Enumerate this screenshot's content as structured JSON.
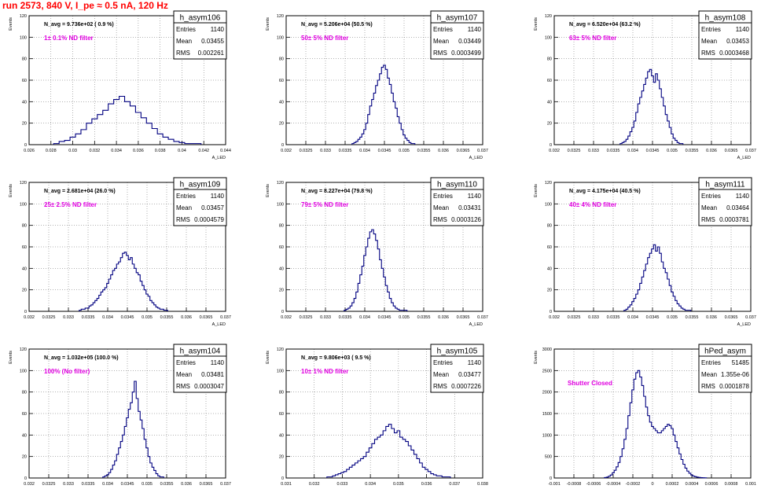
{
  "page_title": "run 2573,   840 V, I_pe ≈ 0.5 nA, 120 Hz",
  "chart_data": [
    {
      "type": "histogram",
      "name": "h_asym106",
      "nav_label": "N_avg = 9.736e+02 ( 0.9 %)",
      "filter_label": "1± 0.1% ND filter",
      "stats": {
        "Entries": "1140",
        "Mean": "0.03455",
        "RMS": "0.002261"
      },
      "ylabel": "Events",
      "xlabel": "A_LED",
      "xlim": [
        0.026,
        0.044
      ],
      "ylim": [
        0,
        120
      ],
      "xticks": [
        0.026,
        0.028,
        0.03,
        0.032,
        0.034,
        0.036,
        0.038,
        0.04,
        0.042,
        0.044
      ],
      "xtick_labels": [
        "0.026",
        "0.028",
        "0.03",
        "0.032",
        "0.034",
        "0.036",
        "0.038",
        "0.04",
        "0.042",
        "0.044"
      ],
      "yticks": [
        0,
        20,
        40,
        60,
        80,
        100,
        120
      ],
      "ytick_labels": [
        "0",
        "20",
        "40",
        "60",
        "80",
        "100",
        "120"
      ],
      "x": [
        0.0285,
        0.029,
        0.0295,
        0.03,
        0.0305,
        0.031,
        0.0315,
        0.032,
        0.0325,
        0.033,
        0.0335,
        0.034,
        0.0345,
        0.035,
        0.0355,
        0.036,
        0.0365,
        0.037,
        0.0375,
        0.038,
        0.0385,
        0.039,
        0.0395,
        0.04,
        0.0405,
        0.041,
        0.0415
      ],
      "values": [
        1,
        3,
        4,
        7,
        10,
        14,
        20,
        24,
        28,
        32,
        38,
        42,
        45,
        40,
        36,
        30,
        25,
        20,
        15,
        10,
        7,
        5,
        3,
        2,
        1,
        1,
        1
      ]
    },
    {
      "type": "histogram",
      "name": "h_asym107",
      "nav_label": "N_avg = 5.206e+04 (50.5 %)",
      "filter_label": "50± 5% ND filter",
      "stats": {
        "Entries": "1140",
        "Mean": "0.03449",
        "RMS": "0.0003499"
      },
      "ylabel": "Events",
      "xlabel": "A_LED",
      "xlim": [
        0.032,
        0.037
      ],
      "ylim": [
        0,
        120
      ],
      "xticks": [
        0.032,
        0.0325,
        0.033,
        0.0335,
        0.034,
        0.0345,
        0.035,
        0.0355,
        0.036,
        0.0365,
        0.037
      ],
      "xtick_labels": [
        "0.032",
        "0.0325",
        "0.033",
        "0.0335",
        "0.034",
        "0.0345",
        "0.035",
        "0.0355",
        "0.036",
        "0.0365",
        "0.037"
      ],
      "yticks": [
        0,
        20,
        40,
        60,
        80,
        100,
        120
      ],
      "ytick_labels": [
        "0",
        "20",
        "40",
        "60",
        "80",
        "100",
        "120"
      ],
      "x": [
        0.0337,
        0.03375,
        0.0338,
        0.03385,
        0.0339,
        0.03395,
        0.034,
        0.03405,
        0.0341,
        0.03415,
        0.0342,
        0.03425,
        0.0343,
        0.03435,
        0.0344,
        0.03445,
        0.0345,
        0.03455,
        0.0346,
        0.03465,
        0.0347,
        0.03475,
        0.0348,
        0.03485,
        0.0349,
        0.03495,
        0.035,
        0.03505,
        0.0351,
        0.03515,
        0.0352,
        0.03525
      ],
      "values": [
        1,
        2,
        3,
        5,
        7,
        10,
        14,
        20,
        28,
        36,
        42,
        48,
        55,
        60,
        66,
        72,
        74,
        70,
        62,
        56,
        48,
        40,
        34,
        26,
        20,
        14,
        9,
        6,
        4,
        2,
        1,
        1
      ]
    },
    {
      "type": "histogram",
      "name": "h_asym108",
      "nav_label": "N_avg = 6.520e+04 (63.2 %)",
      "filter_label": "63± 5% ND filter",
      "stats": {
        "Entries": "1140",
        "Mean": "0.03453",
        "RMS": "0.0003468"
      },
      "ylabel": "Events",
      "xlabel": "A_LED",
      "xlim": [
        0.032,
        0.037
      ],
      "ylim": [
        0,
        120
      ],
      "xticks": [
        0.032,
        0.0325,
        0.033,
        0.0335,
        0.034,
        0.0345,
        0.035,
        0.0355,
        0.036,
        0.0365,
        0.037
      ],
      "xtick_labels": [
        "0.032",
        "0.0325",
        "0.033",
        "0.0335",
        "0.034",
        "0.0345",
        "0.035",
        "0.0355",
        "0.036",
        "0.0365",
        "0.037"
      ],
      "yticks": [
        0,
        20,
        40,
        60,
        80,
        100,
        120
      ],
      "ytick_labels": [
        "0",
        "20",
        "40",
        "60",
        "80",
        "100",
        "120"
      ],
      "x": [
        0.0337,
        0.03375,
        0.0338,
        0.03385,
        0.0339,
        0.03395,
        0.034,
        0.03405,
        0.0341,
        0.03415,
        0.0342,
        0.03425,
        0.0343,
        0.03435,
        0.0344,
        0.03445,
        0.0345,
        0.03455,
        0.0346,
        0.03465,
        0.0347,
        0.03475,
        0.0348,
        0.03485,
        0.0349,
        0.03495,
        0.035,
        0.03505,
        0.0351,
        0.03515,
        0.0352,
        0.03525
      ],
      "values": [
        1,
        2,
        3,
        5,
        8,
        12,
        16,
        22,
        30,
        38,
        44,
        50,
        56,
        62,
        68,
        70,
        64,
        58,
        66,
        60,
        52,
        44,
        36,
        28,
        22,
        16,
        10,
        6,
        4,
        2,
        1,
        1
      ]
    },
    {
      "type": "histogram",
      "name": "h_asym109",
      "nav_label": "N_avg = 2.681e+04 (26.0 %)",
      "filter_label": "25± 2.5% ND filter",
      "stats": {
        "Entries": "1140",
        "Mean": "0.03457",
        "RMS": "0.0004579"
      },
      "ylabel": "Events",
      "xlabel": "A_LED",
      "xlim": [
        0.032,
        0.037
      ],
      "ylim": [
        0,
        120
      ],
      "xticks": [
        0.032,
        0.0325,
        0.033,
        0.0335,
        0.034,
        0.0345,
        0.035,
        0.0355,
        0.036,
        0.0365,
        0.037
      ],
      "xtick_labels": [
        "0.032",
        "0.0325",
        "0.033",
        "0.0335",
        "0.034",
        "0.0345",
        "0.035",
        "0.0355",
        "0.036",
        "0.0365",
        "0.037"
      ],
      "yticks": [
        0,
        20,
        40,
        60,
        80,
        100,
        120
      ],
      "ytick_labels": [
        "0",
        "20",
        "40",
        "60",
        "80",
        "100",
        "120"
      ],
      "x": [
        0.0333,
        0.03335,
        0.0334,
        0.03345,
        0.0335,
        0.03355,
        0.0336,
        0.03365,
        0.0337,
        0.03375,
        0.0338,
        0.03385,
        0.0339,
        0.03395,
        0.034,
        0.03405,
        0.0341,
        0.03415,
        0.0342,
        0.03425,
        0.0343,
        0.03435,
        0.0344,
        0.03445,
        0.0345,
        0.03455,
        0.0346,
        0.03465,
        0.0347,
        0.03475,
        0.0348,
        0.03485,
        0.0349,
        0.03495,
        0.035,
        0.03505,
        0.0351,
        0.03515,
        0.0352,
        0.03525,
        0.0353,
        0.03535,
        0.0354,
        0.03545,
        0.0355
      ],
      "values": [
        1,
        2,
        2,
        3,
        3,
        5,
        6,
        8,
        10,
        12,
        15,
        18,
        20,
        22,
        26,
        30,
        34,
        38,
        40,
        44,
        46,
        50,
        54,
        55,
        52,
        48,
        50,
        44,
        40,
        36,
        34,
        28,
        24,
        20,
        16,
        14,
        10,
        8,
        6,
        4,
        3,
        2,
        2,
        1,
        1
      ]
    },
    {
      "type": "histogram",
      "name": "h_asym110",
      "nav_label": "N_avg = 8.227e+04 (79.8 %)",
      "filter_label": "79± 5% ND filter",
      "stats": {
        "Entries": "1140",
        "Mean": "0.03431",
        "RMS": "0.0003126"
      },
      "ylabel": "Events",
      "xlabel": "A_LED",
      "xlim": [
        0.032,
        0.037
      ],
      "ylim": [
        0,
        120
      ],
      "xticks": [
        0.032,
        0.0325,
        0.033,
        0.0335,
        0.034,
        0.0345,
        0.035,
        0.0355,
        0.036,
        0.0365,
        0.037
      ],
      "xtick_labels": [
        "0.032",
        "0.0325",
        "0.033",
        "0.0335",
        "0.034",
        "0.0345",
        "0.035",
        "0.0355",
        "0.036",
        "0.0365",
        "0.037"
      ],
      "yticks": [
        0,
        20,
        40,
        60,
        80,
        100,
        120
      ],
      "ytick_labels": [
        "0",
        "20",
        "40",
        "60",
        "80",
        "100",
        "120"
      ],
      "x": [
        0.0335,
        0.03355,
        0.0336,
        0.03365,
        0.0337,
        0.03375,
        0.0338,
        0.03385,
        0.0339,
        0.03395,
        0.034,
        0.03405,
        0.0341,
        0.03415,
        0.0342,
        0.03425,
        0.0343,
        0.03435,
        0.0344,
        0.03445,
        0.0345,
        0.03455,
        0.0346,
        0.03465,
        0.0347,
        0.03475,
        0.0348,
        0.03485,
        0.0349,
        0.03495,
        0.035,
        0.03505
      ],
      "values": [
        1,
        2,
        3,
        5,
        8,
        12,
        18,
        26,
        34,
        42,
        52,
        60,
        68,
        74,
        76,
        72,
        66,
        58,
        48,
        40,
        32,
        24,
        18,
        12,
        8,
        5,
        3,
        2,
        1,
        1,
        1,
        1
      ]
    },
    {
      "type": "histogram",
      "name": "h_asym111",
      "nav_label": "N_avg = 4.175e+04 (40.5 %)",
      "filter_label": "40± 4% ND filter",
      "stats": {
        "Entries": "1140",
        "Mean": "0.03464",
        "RMS": "0.0003781"
      },
      "ylabel": "Events",
      "xlabel": "A_LED",
      "xlim": [
        0.032,
        0.037
      ],
      "ylim": [
        0,
        120
      ],
      "xticks": [
        0.032,
        0.0325,
        0.033,
        0.0335,
        0.034,
        0.0345,
        0.035,
        0.0355,
        0.036,
        0.0365,
        0.037
      ],
      "xtick_labels": [
        "0.032",
        "0.0325",
        "0.033",
        "0.0335",
        "0.034",
        "0.0345",
        "0.035",
        "0.0355",
        "0.036",
        "0.0365",
        "0.037"
      ],
      "yticks": [
        0,
        20,
        40,
        60,
        80,
        100,
        120
      ],
      "ytick_labels": [
        "0",
        "20",
        "40",
        "60",
        "80",
        "100",
        "120"
      ],
      "x": [
        0.0338,
        0.03385,
        0.0339,
        0.03395,
        0.034,
        0.03405,
        0.0341,
        0.03415,
        0.0342,
        0.03425,
        0.0343,
        0.03435,
        0.0344,
        0.03445,
        0.0345,
        0.03455,
        0.0346,
        0.03465,
        0.0347,
        0.03475,
        0.0348,
        0.03485,
        0.0349,
        0.03495,
        0.035,
        0.03505,
        0.0351,
        0.03515,
        0.0352,
        0.03525,
        0.0353,
        0.03535,
        0.0354,
        0.03545
      ],
      "values": [
        1,
        2,
        4,
        6,
        9,
        12,
        16,
        20,
        26,
        32,
        38,
        44,
        50,
        54,
        58,
        62,
        56,
        60,
        54,
        46,
        40,
        36,
        30,
        24,
        18,
        14,
        10,
        7,
        5,
        3,
        2,
        1,
        1,
        1
      ]
    },
    {
      "type": "histogram",
      "name": "h_asym104",
      "nav_label": "N_avg = 1.032e+05 (100.0 %)",
      "filter_label": "100% (No filter)",
      "stats": {
        "Entries": "1140",
        "Mean": "0.03481",
        "RMS": "0.0003047"
      },
      "ylabel": "Events",
      "xlabel": "A_LED",
      "xlim": [
        0.032,
        0.037
      ],
      "ylim": [
        0,
        120
      ],
      "xticks": [
        0.032,
        0.0325,
        0.033,
        0.0335,
        0.034,
        0.0345,
        0.035,
        0.0355,
        0.036,
        0.0365,
        0.037
      ],
      "xtick_labels": [
        "0.032",
        "0.0325",
        "0.033",
        "0.0335",
        "0.034",
        "0.0345",
        "0.035",
        "0.0355",
        "0.036",
        "0.0365",
        "0.037"
      ],
      "yticks": [
        0,
        20,
        40,
        60,
        80,
        100,
        120
      ],
      "ytick_labels": [
        "0",
        "20",
        "40",
        "60",
        "80",
        "100",
        "120"
      ],
      "x": [
        0.0339,
        0.03395,
        0.034,
        0.03405,
        0.0341,
        0.03415,
        0.0342,
        0.03425,
        0.0343,
        0.03435,
        0.0344,
        0.03445,
        0.0345,
        0.03455,
        0.0346,
        0.03465,
        0.0347,
        0.03475,
        0.0348,
        0.03485,
        0.0349,
        0.03495,
        0.035,
        0.03505,
        0.0351,
        0.03515,
        0.0352,
        0.03525,
        0.0353,
        0.03535,
        0.0354
      ],
      "values": [
        1,
        2,
        3,
        5,
        8,
        12,
        16,
        22,
        28,
        34,
        40,
        48,
        56,
        64,
        70,
        80,
        90,
        74,
        62,
        54,
        46,
        36,
        28,
        20,
        14,
        10,
        7,
        4,
        2,
        1,
        1
      ]
    },
    {
      "type": "histogram",
      "name": "h_asym105",
      "nav_label": "N_avg = 9.806e+03 ( 9.5 %)",
      "filter_label": "10± 1% ND filter",
      "stats": {
        "Entries": "1140",
        "Mean": "0.03477",
        "RMS": "0.0007226"
      },
      "ylabel": "Events",
      "xlabel": "A_LED",
      "xlim": [
        0.031,
        0.038
      ],
      "ylim": [
        0,
        120
      ],
      "xticks": [
        0.031,
        0.032,
        0.033,
        0.034,
        0.035,
        0.036,
        0.037,
        0.038
      ],
      "xtick_labels": [
        "0.031",
        "0.032",
        "0.033",
        "0.034",
        "0.035",
        "0.036",
        "0.037",
        "0.038"
      ],
      "yticks": [
        0,
        20,
        40,
        60,
        80,
        100,
        120
      ],
      "ytick_labels": [
        "0",
        "20",
        "40",
        "60",
        "80",
        "100",
        "120"
      ],
      "x": [
        0.0325,
        0.0326,
        0.0327,
        0.0328,
        0.0329,
        0.033,
        0.0331,
        0.0332,
        0.0333,
        0.0334,
        0.0335,
        0.0336,
        0.0337,
        0.0338,
        0.0339,
        0.034,
        0.0341,
        0.0342,
        0.0343,
        0.0344,
        0.0345,
        0.0346,
        0.0347,
        0.0348,
        0.0349,
        0.035,
        0.0351,
        0.0352,
        0.0353,
        0.0354,
        0.0355,
        0.0356,
        0.0357,
        0.0358,
        0.0359,
        0.036,
        0.0361,
        0.0362,
        0.0363,
        0.0364,
        0.0365,
        0.0366,
        0.0367,
        0.0368
      ],
      "values": [
        1,
        1,
        2,
        3,
        4,
        5,
        6,
        8,
        10,
        12,
        14,
        16,
        18,
        20,
        24,
        28,
        32,
        36,
        38,
        40,
        44,
        48,
        50,
        46,
        42,
        44,
        38,
        36,
        34,
        30,
        26,
        22,
        18,
        14,
        10,
        8,
        6,
        4,
        3,
        2,
        2,
        1,
        1,
        1
      ]
    },
    {
      "type": "histogram",
      "name": "hPed_asym",
      "nav_label": "",
      "filter_label": "Shutter Closed",
      "stats": {
        "Entries": "51485",
        "Mean": "1.355e-06",
        "RMS": "0.0001878"
      },
      "ylabel": "Events",
      "xlabel": "",
      "xlim": [
        -0.001,
        0.001
      ],
      "ylim": [
        0,
        3000
      ],
      "xticks": [
        -0.001,
        -0.0008,
        -0.0006,
        -0.0004,
        -0.0002,
        0,
        0.0002,
        0.0004,
        0.0006,
        0.0008,
        0.001
      ],
      "xtick_labels": [
        "-0.001",
        "-0.0008",
        "-0.0006",
        "-0.0004",
        "-0.0002",
        "0",
        "0.0002",
        "0.0004",
        "0.0006",
        "0.0008",
        "0.001"
      ],
      "yticks": [
        0,
        500,
        1000,
        1500,
        2000,
        2500,
        3000
      ],
      "ytick_labels": [
        "0",
        "500",
        "1000",
        "1500",
        "2000",
        "2500",
        "3000"
      ],
      "x": [
        -0.00048,
        -0.00046,
        -0.00044,
        -0.00042,
        -0.0004,
        -0.00038,
        -0.00036,
        -0.00034,
        -0.00032,
        -0.0003,
        -0.00028,
        -0.00026,
        -0.00024,
        -0.00022,
        -0.0002,
        -0.00018,
        -0.00016,
        -0.00014,
        -0.00012,
        -0.0001,
        -8e-05,
        -6e-05,
        -4e-05,
        -2e-05,
        0,
        2e-05,
        4e-05,
        6e-05,
        8e-05,
        0.0001,
        0.00012,
        0.00014,
        0.00016,
        0.00018,
        0.0002,
        0.00022,
        0.00024,
        0.00026,
        0.00028,
        0.0003,
        0.00032,
        0.00034,
        0.00036,
        0.00038,
        0.0004,
        0.00042,
        0.00044,
        0.00046,
        0.00048,
        0.0005,
        0.00052,
        0.00054
      ],
      "values": [
        10,
        20,
        40,
        70,
        120,
        180,
        260,
        360,
        500,
        680,
        900,
        1150,
        1450,
        1750,
        2050,
        2300,
        2450,
        2500,
        2350,
        2150,
        1900,
        1650,
        1450,
        1300,
        1200,
        1150,
        1100,
        1050,
        1050,
        1100,
        1150,
        1200,
        1250,
        1220,
        1150,
        1000,
        850,
        700,
        560,
        430,
        320,
        230,
        160,
        110,
        70,
        45,
        30,
        20,
        12,
        8,
        5,
        3
      ]
    }
  ]
}
